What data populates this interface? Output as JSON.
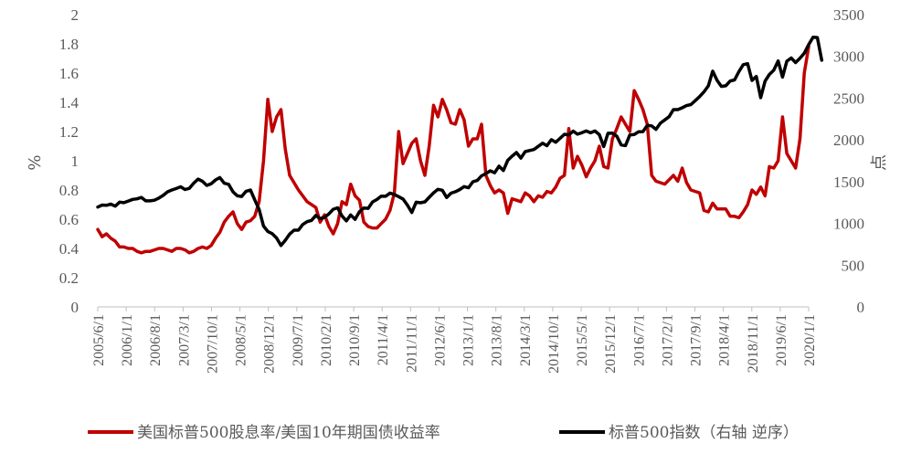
{
  "chart_data": {
    "type": "line",
    "x_tick_labels": [
      "2005/6/1",
      "2006/1/1",
      "2006/8/1",
      "2007/3/1",
      "2007/10/1",
      "2008/5/1",
      "2008/12/1",
      "2009/7/1",
      "2010/2/1",
      "2010/9/1",
      "2011/4/1",
      "2011/11/1",
      "2012/6/1",
      "2013/1/1",
      "2013/8/1",
      "2014/3/1",
      "2014/10/1",
      "2015/5/1",
      "2015/12/1",
      "2016/7/1",
      "2017/2/1",
      "2017/9/1",
      "2018/4/1",
      "2018/11/1",
      "2019/6/1",
      "2020/1/1"
    ],
    "y_left": {
      "label": "%",
      "ylim": [
        0,
        2
      ],
      "ticks": [
        "0",
        "0.2",
        "0.4",
        "0.6",
        "0.8",
        "1",
        "1.2",
        "1.4",
        "1.6",
        "1.8",
        "2"
      ]
    },
    "y_right": {
      "label": "点",
      "ylim": [
        0,
        3500
      ],
      "ticks": [
        "0",
        "500",
        "1000",
        "1500",
        "2000",
        "2500",
        "3000",
        "3500"
      ]
    },
    "legend_position": "bottom",
    "series": [
      {
        "name": "美国标普500股息率/美国10年期国债收益率",
        "axis": "left",
        "color": "#c00000",
        "values": [
          0.53,
          0.48,
          0.5,
          0.47,
          0.45,
          0.41,
          0.41,
          0.4,
          0.4,
          0.38,
          0.37,
          0.38,
          0.38,
          0.39,
          0.4,
          0.4,
          0.39,
          0.38,
          0.4,
          0.4,
          0.39,
          0.37,
          0.38,
          0.4,
          0.41,
          0.4,
          0.42,
          0.47,
          0.51,
          0.58,
          0.62,
          0.65,
          0.57,
          0.53,
          0.58,
          0.59,
          0.62,
          0.72,
          1.0,
          1.42,
          1.2,
          1.3,
          1.35,
          1.08,
          0.9,
          0.85,
          0.8,
          0.76,
          0.72,
          0.7,
          0.68,
          0.58,
          0.63,
          0.55,
          0.5,
          0.57,
          0.72,
          0.7,
          0.84,
          0.76,
          0.73,
          0.58,
          0.55,
          0.54,
          0.54,
          0.57,
          0.6,
          0.66,
          0.78,
          1.2,
          0.98,
          1.05,
          1.12,
          1.15,
          1.0,
          0.9,
          1.1,
          1.38,
          1.3,
          1.42,
          1.35,
          1.26,
          1.25,
          1.35,
          1.28,
          1.1,
          1.15,
          1.15,
          1.25,
          0.9,
          0.83,
          0.78,
          0.8,
          0.78,
          0.64,
          0.74,
          0.73,
          0.72,
          0.78,
          0.76,
          0.72,
          0.76,
          0.75,
          0.79,
          0.78,
          0.82,
          0.88,
          0.9,
          1.22,
          0.95,
          1.03,
          0.97,
          0.89,
          0.95,
          1.0,
          1.1,
          0.96,
          0.95,
          1.15,
          1.22,
          1.3,
          1.25,
          1.2,
          1.48,
          1.42,
          1.35,
          1.25,
          0.9,
          0.86,
          0.85,
          0.84,
          0.87,
          0.9,
          0.86,
          0.95,
          0.85,
          0.8,
          0.79,
          0.78,
          0.66,
          0.65,
          0.71,
          0.67,
          0.67,
          0.67,
          0.62,
          0.62,
          0.61,
          0.65,
          0.7,
          0.8,
          0.77,
          0.82,
          0.76,
          0.96,
          0.95,
          1.0,
          1.3,
          1.05,
          1.0,
          0.95,
          1.15,
          1.6,
          1.78
        ]
      },
      {
        "name": "标普500指数（右轴 逆序）",
        "axis": "right",
        "color": "#000000",
        "values": [
          1195,
          1219,
          1216,
          1231,
          1206,
          1254,
          1248,
          1268,
          1287,
          1294,
          1311,
          1270,
          1270,
          1277,
          1303,
          1336,
          1378,
          1400,
          1418,
          1438,
          1406,
          1420,
          1482,
          1530,
          1504,
          1455,
          1474,
          1520,
          1549,
          1481,
          1468,
          1378,
          1330,
          1322,
          1385,
          1400,
          1282,
          1166,
          968,
          903,
          877,
          825,
          735,
          797,
          872,
          919,
          919,
          987,
          1020,
          1036,
          1096,
          1057,
          1073,
          1115,
          1169,
          1187,
          1089,
          1030,
          1101,
          1049,
          1141,
          1183,
          1180,
          1257,
          1286,
          1327,
          1325,
          1363,
          1345,
          1320,
          1292,
          1218,
          1131,
          1253,
          1247,
          1258,
          1312,
          1366,
          1408,
          1397,
          1310,
          1362,
          1379,
          1406,
          1440,
          1426,
          1498,
          1514,
          1569,
          1597,
          1630,
          1606,
          1685,
          1633,
          1756,
          1805,
          1848,
          1782,
          1859,
          1872,
          1884,
          1923,
          1960,
          1931,
          2003,
          1972,
          2018,
          2067,
          2058,
          2104,
          2068,
          2086,
          2107,
          2085,
          2107,
          2063,
          1920,
          2079,
          2080,
          2044,
          1940,
          1932,
          2059,
          2065,
          2097,
          2099,
          2174,
          2168,
          2126,
          2199,
          2239,
          2278,
          2363,
          2362,
          2384,
          2411,
          2423,
          2470,
          2519,
          2575,
          2647,
          2823,
          2713,
          2640,
          2648,
          2705,
          2718,
          2816,
          2901,
          2913,
          2711,
          2760,
          2506,
          2704,
          2784,
          2834,
          2946,
          2752,
          2942,
          2980,
          2926,
          2977,
          3037,
          3140,
          3230,
          3225,
          2954
        ]
      }
    ]
  }
}
